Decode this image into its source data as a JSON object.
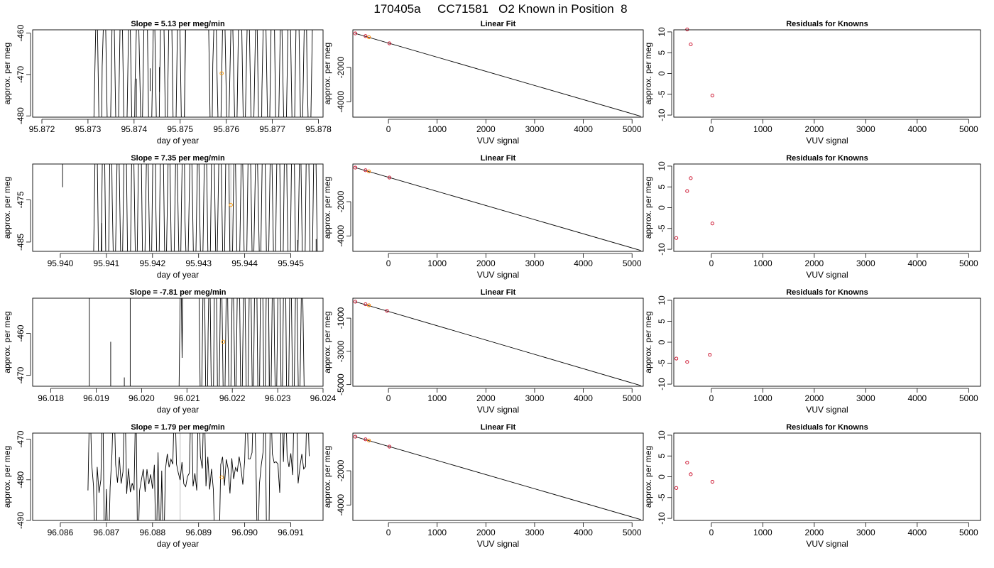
{
  "figure_title": "170405a     CC71581   O2 Known in Position  8",
  "chart_data": [
    {
      "type": "line",
      "row": 0,
      "title": "Slope =  5.13  per meg/min",
      "xlabel": "day of year",
      "ylabel": "approx. per meg",
      "xlim": [
        95.8718,
        95.8781
      ],
      "ylim": [
        -480.3,
        -459.2
      ],
      "xticks": [
        "95.872",
        "95.873",
        "95.874",
        "95.875",
        "95.876",
        "95.877",
        "95.878"
      ],
      "xtick_values": [
        95.872,
        95.873,
        95.874,
        95.875,
        95.876,
        95.877,
        95.878
      ],
      "yticks": [
        "-480",
        "-470",
        "-460"
      ],
      "ytick_values": [
        -480,
        -470,
        -460
      ],
      "reference_x": 95.8751,
      "known_point": {
        "x": 95.8759,
        "y": -469.7
      },
      "trace": {
        "seed": 11,
        "xstart": 95.8731,
        "xend": 95.8779,
        "count": 54,
        "flat_segment": [
          95.8752,
          95.8756
        ]
      },
      "short_drops": [
        {
          "x": 95.87405,
          "top": -471,
          "bottom": -480.3
        },
        {
          "x": 95.87435,
          "top": -468.5,
          "bottom": -474
        },
        {
          "x": 95.87455,
          "top": -468.2,
          "bottom": -474.2
        }
      ]
    },
    {
      "type": "scatter",
      "row": 0,
      "title": "Linear Fit",
      "xlabel": "VUV signal",
      "ylabel": "approx. per meg",
      "xlim": [
        -730,
        5230
      ],
      "ylim": [
        -4900,
        200
      ],
      "xticks": [
        "0",
        "1000",
        "2000",
        "3000",
        "4000",
        "5000"
      ],
      "xtick_values": [
        0,
        1000,
        2000,
        3000,
        4000,
        5000
      ],
      "yticks": [
        "-4000",
        "-2000"
      ],
      "ytick_values": [
        -4000,
        -2000
      ],
      "fit_line": {
        "x": [
          -680,
          5180
        ],
        "y": [
          -11,
          -4850
        ]
      },
      "points": [
        {
          "x": -680,
          "y": -11,
          "color": "#c8001e"
        },
        {
          "x": -470,
          "y": -166,
          "color": "#c8001e"
        },
        {
          "x": -400,
          "y": -232,
          "color": "#c8001e"
        },
        {
          "x": 20,
          "y": -589,
          "color": "#c8001e"
        },
        {
          "x": -400,
          "y": -232,
          "color": "#ff9a00"
        }
      ]
    },
    {
      "type": "scatter",
      "row": 0,
      "title": "Residuals for Knowns",
      "xlabel": "VUV signal",
      "ylabel": "approx. per meg",
      "xlim": [
        -730,
        5230
      ],
      "ylim": [
        -10.5,
        10.5
      ],
      "xticks": [
        "0",
        "1000",
        "2000",
        "3000",
        "4000",
        "5000"
      ],
      "xtick_values": [
        0,
        1000,
        2000,
        3000,
        4000,
        5000
      ],
      "yticks": [
        "-10",
        "-5",
        "0",
        "5",
        "10"
      ],
      "ytick_values": [
        -10,
        -5,
        0,
        5,
        10
      ],
      "points": [
        {
          "x": -470,
          "y": 10.6,
          "color": "#c8001e"
        },
        {
          "x": -400,
          "y": 7,
          "color": "#c8001e"
        },
        {
          "x": 20,
          "y": -5.3,
          "color": "#c8001e"
        }
      ]
    },
    {
      "type": "line",
      "row": 1,
      "title": "Slope =  7.35  per meg/min",
      "xlabel": "day of year",
      "ylabel": "approx. per meg",
      "xlim": [
        95.9394,
        95.9457
      ],
      "ylim": [
        -487.2,
        -466.5
      ],
      "xticks": [
        "95.940",
        "95.941",
        "95.942",
        "95.943",
        "95.944",
        "95.945"
      ],
      "xtick_values": [
        95.94,
        95.941,
        95.942,
        95.943,
        95.944,
        95.945
      ],
      "yticks": [
        "-485",
        "-475"
      ],
      "ytick_values": [
        -485,
        -475
      ],
      "reference_x": 95.9437,
      "known_point": {
        "x": 95.9437,
        "y": -476.2
      },
      "trace": {
        "seed": 23,
        "xstart": 95.9407,
        "xend": 95.9456,
        "count": 62,
        "flat_segment": null
      },
      "short_drops": [
        {
          "x": 95.94005,
          "top": -466.5,
          "bottom": -472
        },
        {
          "x": 95.9409,
          "top": -480.5,
          "bottom": -487.2
        },
        {
          "x": 95.94515,
          "top": -484.5,
          "bottom": -487.2
        },
        {
          "x": 95.94555,
          "top": -484.3,
          "bottom": -487.2
        }
      ]
    },
    {
      "type": "scatter",
      "row": 1,
      "title": "Linear Fit",
      "xlabel": "VUV signal",
      "ylabel": "approx. per meg",
      "xlim": [
        -730,
        5230
      ],
      "ylim": [
        -4900,
        200
      ],
      "xticks": [
        "0",
        "1000",
        "2000",
        "3000",
        "4000",
        "5000"
      ],
      "xtick_values": [
        0,
        1000,
        2000,
        3000,
        4000,
        5000
      ],
      "yticks": [
        "-4000",
        "-2000"
      ],
      "ytick_values": [
        -4000,
        -2000
      ],
      "fit_line": {
        "x": [
          -680,
          5180
        ],
        "y": [
          -11,
          -4850
        ]
      },
      "points": [
        {
          "x": -680,
          "y": -11,
          "color": "#c8001e"
        },
        {
          "x": -470,
          "y": -166,
          "color": "#c8001e"
        },
        {
          "x": -400,
          "y": -232,
          "color": "#c8001e"
        },
        {
          "x": 20,
          "y": -589,
          "color": "#c8001e"
        },
        {
          "x": -400,
          "y": -232,
          "color": "#ff9a00"
        }
      ]
    },
    {
      "type": "scatter",
      "row": 1,
      "title": "Residuals for Knowns",
      "xlabel": "VUV signal",
      "ylabel": "approx. per meg",
      "xlim": [
        -730,
        5230
      ],
      "ylim": [
        -10.5,
        10.5
      ],
      "xticks": [
        "0",
        "1000",
        "2000",
        "3000",
        "4000",
        "5000"
      ],
      "xtick_values": [
        0,
        1000,
        2000,
        3000,
        4000,
        5000
      ],
      "yticks": [
        "-10",
        "-5",
        "0",
        "5",
        "10"
      ],
      "ytick_values": [
        -10,
        -5,
        0,
        5,
        10
      ],
      "points": [
        {
          "x": -680,
          "y": -7.3,
          "color": "#c8001e"
        },
        {
          "x": -470,
          "y": 4,
          "color": "#c8001e"
        },
        {
          "x": -400,
          "y": 7.1,
          "color": "#c8001e"
        },
        {
          "x": 20,
          "y": -3.8,
          "color": "#c8001e"
        }
      ]
    },
    {
      "type": "line",
      "row": 2,
      "title": "Slope =  -7.81  per meg/min",
      "xlabel": "day of year",
      "ylabel": "approx. per meg",
      "xlim": [
        96.0176,
        96.024
      ],
      "ylim": [
        -472.6,
        -451.6
      ],
      "xticks": [
        "96.018",
        "96.019",
        "96.020",
        "96.021",
        "96.022",
        "96.023",
        "96.024"
      ],
      "xtick_values": [
        96.018,
        96.019,
        96.02,
        96.021,
        96.022,
        96.023,
        96.024
      ],
      "yticks": [
        "-470",
        "-460"
      ],
      "ytick_values": [
        -470,
        -460
      ],
      "reference_x": 96.0228,
      "known_point": {
        "x": 96.0218,
        "y": -462.0
      },
      "trace": {
        "seed": 37,
        "xstart": 96.0208,
        "xend": 96.0236,
        "count": 44,
        "flat_segment": [
          96.0209,
          96.0213
        ]
      },
      "short_drops": [
        {
          "x": 96.01885,
          "top": -451.6,
          "bottom": -472.6
        },
        {
          "x": 96.01932,
          "top": -462,
          "bottom": -472.6
        },
        {
          "x": 96.01962,
          "top": -470.5,
          "bottom": -472.6
        },
        {
          "x": 96.01975,
          "top": -451.6,
          "bottom": -472.6
        }
      ]
    },
    {
      "type": "scatter",
      "row": 2,
      "title": "Linear Fit",
      "xlabel": "VUV signal",
      "ylabel": "approx. per meg",
      "xlim": [
        -730,
        5230
      ],
      "ylim": [
        -5100,
        200
      ],
      "xticks": [
        "0",
        "1000",
        "2000",
        "3000",
        "4000",
        "5000"
      ],
      "xtick_values": [
        0,
        1000,
        2000,
        3000,
        4000,
        5000
      ],
      "yticks": [
        "-5000",
        "-3000",
        "-1000"
      ],
      "ytick_values": [
        -5000,
        -3000,
        -1000
      ],
      "fit_line": {
        "x": [
          -680,
          5180
        ],
        "y": [
          -11,
          -5060
        ]
      },
      "points": [
        {
          "x": -680,
          "y": -11,
          "color": "#c8001e"
        },
        {
          "x": -470,
          "y": -166,
          "color": "#c8001e"
        },
        {
          "x": -400,
          "y": -232,
          "color": "#c8001e"
        },
        {
          "x": -30,
          "y": -560,
          "color": "#c8001e"
        },
        {
          "x": -400,
          "y": -232,
          "color": "#ff9a00"
        }
      ]
    },
    {
      "type": "scatter",
      "row": 2,
      "title": "Residuals for Knowns",
      "xlabel": "VUV signal",
      "ylabel": "approx. per meg",
      "xlim": [
        -730,
        5230
      ],
      "ylim": [
        -10.5,
        10.5
      ],
      "xticks": [
        "0",
        "1000",
        "2000",
        "3000",
        "4000",
        "5000"
      ],
      "xtick_values": [
        0,
        1000,
        2000,
        3000,
        4000,
        5000
      ],
      "yticks": [
        "-10",
        "-5",
        "0",
        "5",
        "10"
      ],
      "ytick_values": [
        -10,
        -5,
        0,
        5,
        10
      ],
      "points": [
        {
          "x": -680,
          "y": -3.9,
          "color": "#c8001e"
        },
        {
          "x": -470,
          "y": -4.7,
          "color": "#c8001e"
        },
        {
          "x": -30,
          "y": -3.0,
          "color": "#c8001e"
        }
      ]
    },
    {
      "type": "line",
      "row": 3,
      "title": "Slope =  1.79  per meg/min",
      "xlabel": "day of year",
      "ylabel": "approx. per meg",
      "xlim": [
        96.0854,
        96.0917
      ],
      "ylim": [
        -490,
        -468.5
      ],
      "xticks": [
        "96.086",
        "96.087",
        "96.088",
        "96.089",
        "96.090",
        "96.091"
      ],
      "xtick_values": [
        96.086,
        96.087,
        96.088,
        96.089,
        96.09,
        96.091
      ],
      "yticks": [
        "-490",
        "-480",
        "-470"
      ],
      "ytick_values": [
        -490,
        -480,
        -470
      ],
      "reference_x": 96.0886,
      "known_point": {
        "x": 96.0895,
        "y": -479.4
      },
      "trace": {
        "seed": 53,
        "xstart": 96.0866,
        "xend": 96.0914,
        "count": 120,
        "flat_segment": null,
        "wiggly": true
      },
      "short_drops": []
    },
    {
      "type": "scatter",
      "row": 3,
      "title": "Linear Fit",
      "xlabel": "VUV signal",
      "ylabel": "approx. per meg",
      "xlim": [
        -730,
        5230
      ],
      "ylim": [
        -4900,
        200
      ],
      "xticks": [
        "0",
        "1000",
        "2000",
        "3000",
        "4000",
        "5000"
      ],
      "xtick_values": [
        0,
        1000,
        2000,
        3000,
        4000,
        5000
      ],
      "yticks": [
        "-4000",
        "-2000"
      ],
      "ytick_values": [
        -4000,
        -2000
      ],
      "fit_line": {
        "x": [
          -680,
          5180
        ],
        "y": [
          -11,
          -4850
        ]
      },
      "points": [
        {
          "x": -680,
          "y": -11,
          "color": "#c8001e"
        },
        {
          "x": -470,
          "y": -166,
          "color": "#c8001e"
        },
        {
          "x": -400,
          "y": -232,
          "color": "#c8001e"
        },
        {
          "x": 20,
          "y": -589,
          "color": "#c8001e"
        },
        {
          "x": -400,
          "y": -232,
          "color": "#ff9a00"
        }
      ]
    },
    {
      "type": "scatter",
      "row": 3,
      "title": "Residuals for Knowns",
      "xlabel": "VUV signal",
      "ylabel": "approx. per meg",
      "xlim": [
        -730,
        5230
      ],
      "ylim": [
        -10.5,
        10.5
      ],
      "xticks": [
        "0",
        "1000",
        "2000",
        "3000",
        "4000",
        "5000"
      ],
      "xtick_values": [
        0,
        1000,
        2000,
        3000,
        4000,
        5000
      ],
      "yticks": [
        "-10",
        "-5",
        "0",
        "5",
        "10"
      ],
      "ytick_values": [
        -10,
        -5,
        0,
        5,
        10
      ],
      "points": [
        {
          "x": -680,
          "y": -2.7,
          "color": "#c8001e"
        },
        {
          "x": -470,
          "y": 3.4,
          "color": "#c8001e"
        },
        {
          "x": -400,
          "y": 0.6,
          "color": "#c8001e"
        },
        {
          "x": 20,
          "y": -1.2,
          "color": "#c8001e"
        }
      ]
    }
  ]
}
